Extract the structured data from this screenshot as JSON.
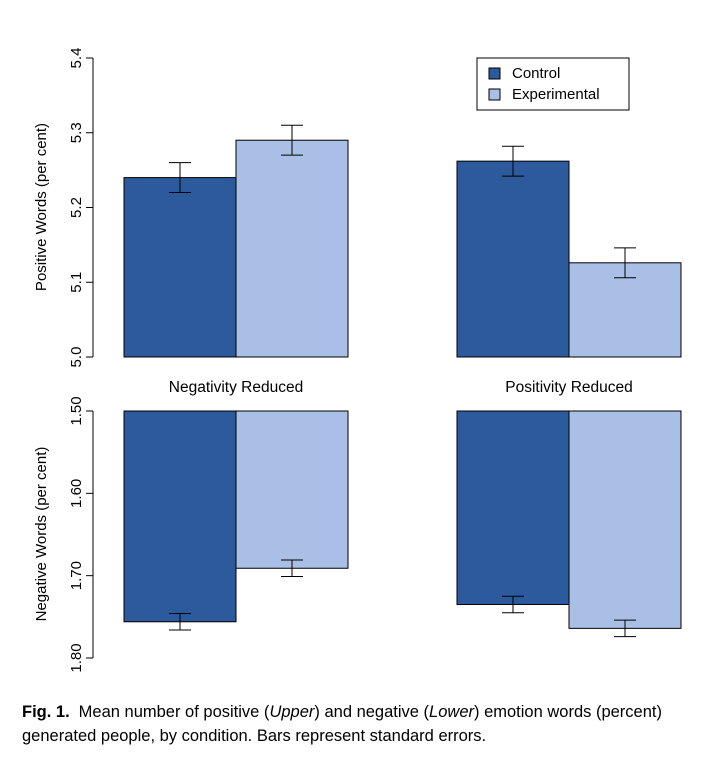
{
  "chart_data": [
    {
      "type": "bar",
      "panel": "upper",
      "ylabel": "Positive Words (per cent)",
      "ylim": [
        5.0,
        5.4
      ],
      "yticks": [
        "5.0",
        "5.1",
        "5.2",
        "5.3",
        "5.4"
      ],
      "ytick_values": [
        5.0,
        5.1,
        5.2,
        5.3,
        5.4
      ],
      "axis_reversed": false,
      "categories": [
        "Negativity Reduced",
        "Positivity Reduced"
      ],
      "series": [
        {
          "name": "Control",
          "values": [
            5.24,
            5.262
          ],
          "errors": [
            0.02,
            0.02
          ]
        },
        {
          "name": "Experimental",
          "values": [
            5.29,
            5.126
          ],
          "errors": [
            0.02,
            0.02
          ]
        }
      ],
      "legend": {
        "position": "top-right",
        "entries": [
          "Control",
          "Experimental"
        ]
      }
    },
    {
      "type": "bar",
      "panel": "lower",
      "ylabel": "Negative Words (per cent)",
      "ylim": [
        1.5,
        1.8
      ],
      "yticks": [
        "1.50",
        "1.60",
        "1.70",
        "1.80"
      ],
      "ytick_values": [
        1.5,
        1.6,
        1.7,
        1.8
      ],
      "axis_reversed": true,
      "categories": [
        "Negativity Reduced",
        "Positivity Reduced"
      ],
      "series": [
        {
          "name": "Control",
          "values": [
            1.756,
            1.735
          ],
          "errors": [
            0.01,
            0.01
          ]
        },
        {
          "name": "Experimental",
          "values": [
            1.691,
            1.764
          ],
          "errors": [
            0.01,
            0.01
          ]
        }
      ]
    }
  ],
  "colors": {
    "control": "#2c5a9c",
    "experimental": "#a9bfe5"
  },
  "caption": {
    "label": "Fig. 1.",
    "part1": "Mean number of positive (",
    "upper": "Upper",
    "part2": ") and negative (",
    "lower": "Lower",
    "part3": ") emotion words (percent) generated people, by condition. Bars represent standard errors."
  }
}
